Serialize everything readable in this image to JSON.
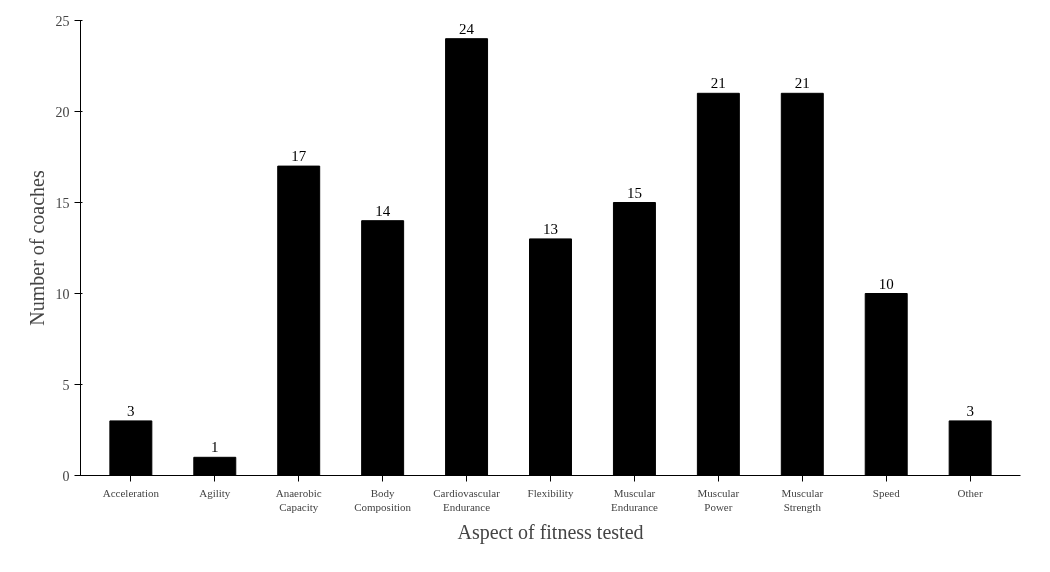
{
  "chart_data": {
    "type": "bar",
    "xlabel": "Aspect of fitness tested",
    "ylabel": "Number of coaches",
    "categories": [
      "Acceleration",
      "Agility",
      "Anaerobic Capacity",
      "Body Composition",
      "Cardiovascular Endurance",
      "Flexibility",
      "Muscular Endurance",
      "Muscular Power",
      "Muscular Strength",
      "Speed",
      "Other"
    ],
    "values": [
      3,
      1,
      17,
      14,
      24,
      13,
      15,
      21,
      21,
      10,
      3
    ],
    "color": "#000000",
    "ylim": [
      0,
      25
    ],
    "yticks": [
      0,
      5,
      10,
      15,
      20,
      25
    ],
    "grid": false,
    "data_labels": true
  }
}
